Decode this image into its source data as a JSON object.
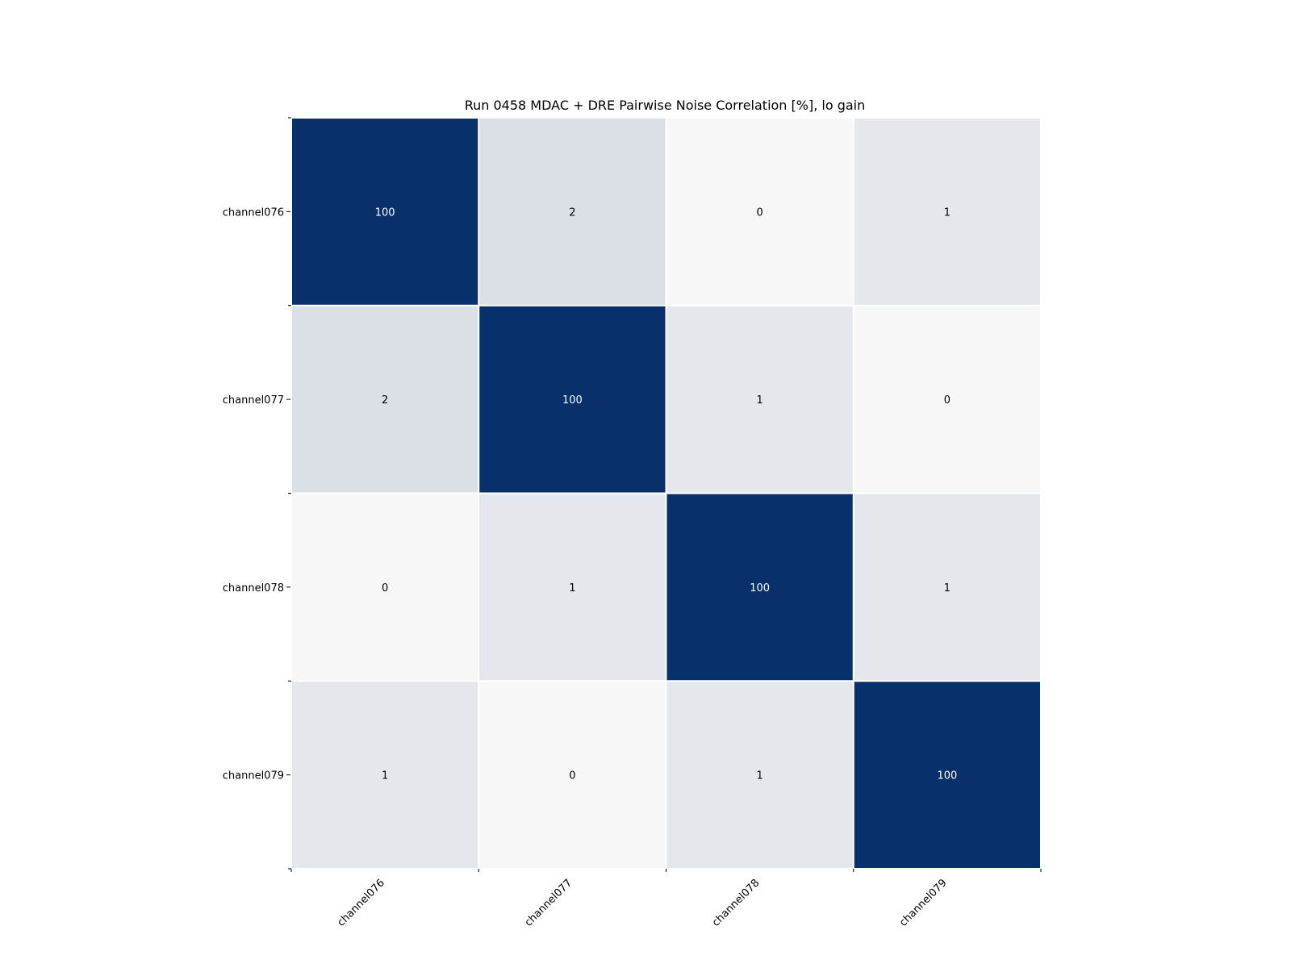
{
  "chart_data": {
    "type": "heatmap",
    "title": "Run 0458 MDAC + DRE Pairwise Noise Correlation [%], lo gain",
    "xlabel": "",
    "ylabel": "",
    "x_categories": [
      "channel076",
      "channel077",
      "channel078",
      "channel079"
    ],
    "y_categories": [
      "channel076",
      "channel077",
      "channel078",
      "channel079"
    ],
    "values": [
      [
        100,
        2,
        0,
        1
      ],
      [
        2,
        100,
        1,
        0
      ],
      [
        0,
        1,
        100,
        1
      ],
      [
        1,
        0,
        1,
        100
      ]
    ],
    "annotated": true,
    "colormap": "Blues",
    "color_range": [
      0,
      100
    ],
    "colors": {
      "low": "#f7f7f7",
      "high": "#08306b",
      "annotation_light": "#ffffff",
      "annotation_dark": "#000000",
      "cell_gap": "#ffffff"
    },
    "grid": false,
    "legend": "none"
  }
}
